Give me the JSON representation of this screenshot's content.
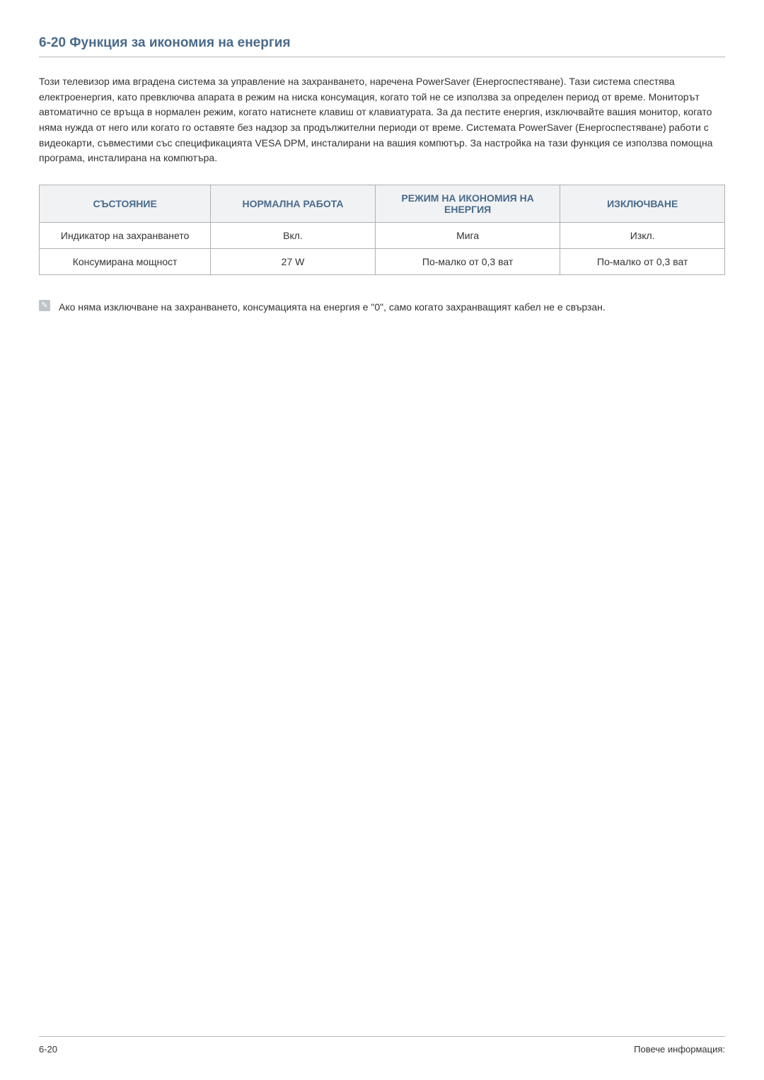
{
  "section": {
    "number": "6-20",
    "title": "Функция за икономия на енергия",
    "full_title": "6-20   Функция за икономия на енергия"
  },
  "paragraph": "Този телевизор има вградена система за управление на захранването, наречена PowerSaver (Енергоспестяване). Тази система спестява електроенергия, като превключва апарата в режим на ниска консумация, когато той не се използва за определен период от време. Мониторът автоматично се връща в нормален режим, когато натиснете клавиш от клавиатурата. За да пестите енергия, изключвайте вашия монитор, когато няма нужда от него или когато го оставяте без надзор за продължителни периоди от време. Системата PowerSaver (Енергоспестяване) работи с видеокарти, съвместими със спецификацията VESA DPM, инсталирани на вашия компютър. За настройка на тази функция се използва помощна програма, инсталирана на компютъра.",
  "table": {
    "headers": [
      "СЪСТОЯНИЕ",
      "НОРМАЛНА РАБОТА",
      "РЕЖИМ НА ИКОНОМИЯ НА ЕНЕРГИЯ",
      "ИЗКЛЮЧВАНЕ"
    ],
    "rows": [
      [
        "Индикатор на захранването",
        "Вкл.",
        "Мига",
        "Изкл."
      ],
      [
        "Консумирана мощност",
        "27 W",
        "По-малко от 0,3 ват",
        "По-малко от 0,3 ват"
      ]
    ],
    "header_bg": "#f0f2f4",
    "header_color": "#4a6a8a",
    "border_color": "#b0b0b0",
    "cell_color": "#333333",
    "col_widths": [
      "25%",
      "24%",
      "27%",
      "24%"
    ]
  },
  "note": {
    "icon_glyph": "✎",
    "text": "Ако няма изключване на захранването, консумацията на енергия е \"0\", само когато захранващият кабел не е свързан."
  },
  "footer": {
    "left": "6-20",
    "right": "Повече информация:"
  },
  "colors": {
    "heading": "#4a6a8a",
    "body_text": "#333333",
    "rule": "#b8b8b8",
    "note_icon_bg": "#bfc4c8",
    "background": "#ffffff"
  },
  "typography": {
    "heading_fontsize": 19,
    "body_fontsize": 14,
    "footer_fontsize": 13,
    "font_family": "Arial"
  }
}
